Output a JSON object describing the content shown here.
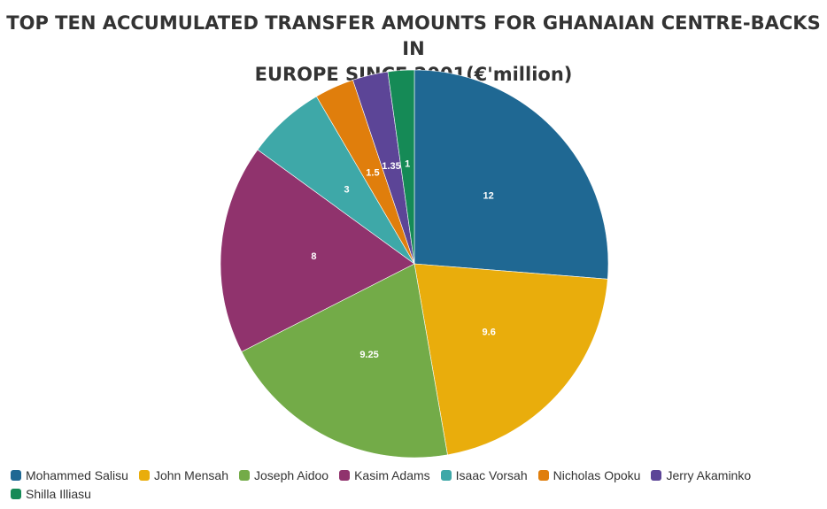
{
  "chart_data": {
    "type": "pie",
    "title_lines": [
      "TOP TEN ACCUMULATED TRANSFER AMOUNTS FOR GHANAIAN CENTRE-BACKS IN",
      "EUROPE SINCE 2001(€'million)"
    ],
    "legend_position": "bottom-left",
    "slices": [
      {
        "label": "Mohammed Salisu",
        "value": 12,
        "value_label": "12",
        "color": "#1f6893"
      },
      {
        "label": "John Mensah",
        "value": 9.6,
        "value_label": "9.6",
        "color": "#e9ad0c"
      },
      {
        "label": "Joseph Aidoo",
        "value": 9.25,
        "value_label": "9.25",
        "color": "#73ab48"
      },
      {
        "label": "Kasim Adams",
        "value": 8,
        "value_label": "8",
        "color": "#90336d"
      },
      {
        "label": "Isaac Vorsah",
        "value": 3,
        "value_label": "3",
        "color": "#3ea8a8"
      },
      {
        "label": "Nicholas Opoku",
        "value": 1.5,
        "value_label": "1.5",
        "color": "#e07e0c"
      },
      {
        "label": "Jerry Akaminko",
        "value": 1.35,
        "value_label": "1.35",
        "color": "#5c4597"
      },
      {
        "label": "Shilla Illiasu",
        "value": 1,
        "value_label": "1",
        "color": "#158a56"
      }
    ]
  }
}
